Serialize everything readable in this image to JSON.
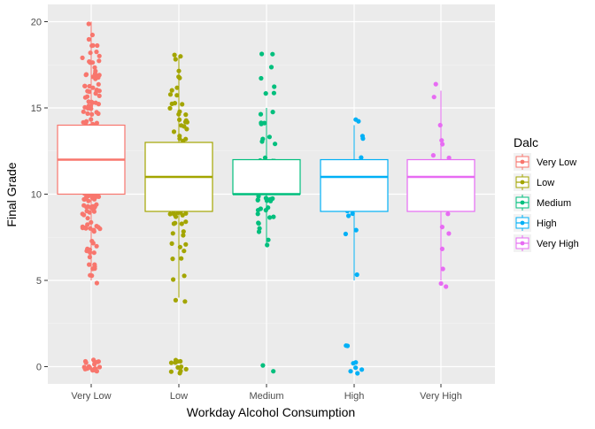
{
  "chart_data": {
    "type": "boxplot",
    "xlabel": "Workday Alcohol Consumption",
    "ylabel": "Final Grade",
    "ylim": [
      -1,
      21
    ],
    "yticks": [
      0,
      5,
      10,
      15,
      20
    ],
    "categories": [
      "Very Low",
      "Low",
      "Medium",
      "High",
      "Very High"
    ],
    "grid": true,
    "legend": {
      "title": "Dalc",
      "position": "right",
      "entries": [
        "Very Low",
        "Low",
        "Medium",
        "High",
        "Very High"
      ]
    },
    "colors": [
      "#F8766D",
      "#A3A500",
      "#00BF7D",
      "#00B0F6",
      "#E76BF3"
    ],
    "boxes": [
      {
        "name": "Very Low",
        "whisker_low": 5,
        "q1": 10,
        "median": 12,
        "q3": 14,
        "whisker_high": 20
      },
      {
        "name": "Low",
        "whisker_low": 4,
        "q1": 9,
        "median": 11,
        "q3": 13,
        "whisker_high": 18
      },
      {
        "name": "Medium",
        "whisker_low": 7,
        "q1": 10,
        "median": 10,
        "q3": 12,
        "whisker_high": 15
      },
      {
        "name": "High",
        "whisker_low": 5,
        "q1": 9,
        "median": 11,
        "q3": 12,
        "whisker_high": 14
      },
      {
        "name": "Very High",
        "whisker_low": 5,
        "q1": 9,
        "median": 11,
        "q3": 12,
        "whisker_high": 16
      }
    ],
    "points": [
      {
        "name": "Very Low",
        "values": [
          0,
          0,
          0,
          0,
          0,
          0,
          0,
          0,
          0,
          0,
          0,
          0,
          0,
          0,
          0,
          0,
          0,
          0,
          0,
          0,
          5,
          5,
          5,
          6,
          6,
          6,
          6,
          6,
          6,
          7,
          7,
          7,
          7,
          7,
          7,
          7,
          7,
          8,
          8,
          8,
          8,
          8,
          8,
          8,
          8,
          8,
          8,
          8,
          8,
          9,
          9,
          9,
          9,
          9,
          9,
          9,
          9,
          9,
          9,
          9,
          9,
          9,
          9,
          9,
          9,
          10,
          10,
          10,
          10,
          10,
          10,
          10,
          10,
          10,
          10,
          10,
          10,
          10,
          10,
          10,
          10,
          10,
          10,
          10,
          10,
          10,
          10,
          10,
          10,
          10,
          10,
          10,
          10,
          10,
          10,
          11,
          11,
          11,
          11,
          11,
          11,
          11,
          11,
          11,
          11,
          11,
          11,
          11,
          11,
          11,
          11,
          11,
          11,
          11,
          11,
          11,
          11,
          11,
          11,
          11,
          11,
          11,
          11,
          11,
          11,
          12,
          12,
          12,
          12,
          12,
          12,
          12,
          12,
          12,
          12,
          12,
          12,
          12,
          12,
          12,
          12,
          12,
          12,
          12,
          12,
          12,
          12,
          12,
          12,
          12,
          12,
          12,
          12,
          13,
          13,
          13,
          13,
          13,
          13,
          13,
          13,
          13,
          13,
          13,
          13,
          13,
          13,
          13,
          13,
          13,
          13,
          13,
          13,
          13,
          13,
          13,
          13,
          13,
          14,
          14,
          14,
          14,
          14,
          14,
          14,
          14,
          14,
          14,
          14,
          14,
          14,
          14,
          14,
          14,
          14,
          14,
          14,
          14,
          15,
          15,
          15,
          15,
          15,
          15,
          15,
          15,
          15,
          15,
          15,
          15,
          15,
          15,
          15,
          15,
          16,
          16,
          16,
          16,
          16,
          16,
          16,
          16,
          16,
          16,
          16,
          16,
          16,
          16,
          17,
          17,
          17,
          17,
          17,
          17,
          17,
          17,
          17,
          17,
          18,
          18,
          18,
          18,
          18,
          18,
          18,
          18,
          19,
          19,
          19,
          19,
          19,
          20
        ]
      },
      {
        "name": "Low",
        "values": [
          0,
          0,
          0,
          0,
          0,
          0,
          0,
          0,
          0,
          0,
          0,
          4,
          4,
          5,
          5,
          6,
          6,
          7,
          7,
          7,
          7,
          8,
          8,
          8,
          8,
          8,
          8,
          8,
          9,
          9,
          9,
          9,
          9,
          9,
          9,
          9,
          9,
          9,
          9,
          9,
          10,
          10,
          10,
          10,
          10,
          10,
          10,
          10,
          10,
          10,
          10,
          10,
          10,
          11,
          11,
          11,
          11,
          11,
          11,
          11,
          11,
          11,
          11,
          11,
          11,
          11,
          11,
          12,
          12,
          12,
          12,
          12,
          12,
          12,
          12,
          12,
          12,
          12,
          13,
          13,
          13,
          13,
          13,
          13,
          13,
          13,
          13,
          13,
          14,
          14,
          14,
          14,
          14,
          14,
          14,
          14,
          15,
          15,
          15,
          15,
          15,
          15,
          15,
          16,
          16,
          16,
          16,
          17,
          17,
          17,
          18,
          18,
          18
        ]
      },
      {
        "name": "Medium",
        "values": [
          0,
          0,
          7,
          7,
          8,
          8,
          8,
          8,
          9,
          9,
          9,
          9,
          9,
          9,
          9,
          10,
          10,
          10,
          10,
          10,
          10,
          10,
          10,
          10,
          10,
          10,
          10,
          10,
          10,
          11,
          11,
          11,
          11,
          11,
          11,
          11,
          11,
          11,
          11,
          12,
          12,
          12,
          12,
          12,
          12,
          13,
          13,
          13,
          13,
          14,
          14,
          14,
          15,
          15,
          16,
          16,
          16,
          17,
          17,
          18,
          18
        ]
      },
      {
        "name": "High",
        "values": [
          0,
          0,
          0,
          0,
          0,
          0,
          1,
          1,
          5,
          8,
          8,
          9,
          9,
          9,
          10,
          10,
          11,
          11,
          11,
          11,
          12,
          12,
          12,
          13,
          13,
          14,
          14
        ]
      },
      {
        "name": "Very High",
        "values": [
          5,
          5,
          6,
          7,
          8,
          8,
          9,
          9,
          10,
          10,
          10,
          11,
          11,
          11,
          11,
          12,
          12,
          12,
          13,
          13,
          14,
          16,
          16
        ]
      }
    ]
  }
}
